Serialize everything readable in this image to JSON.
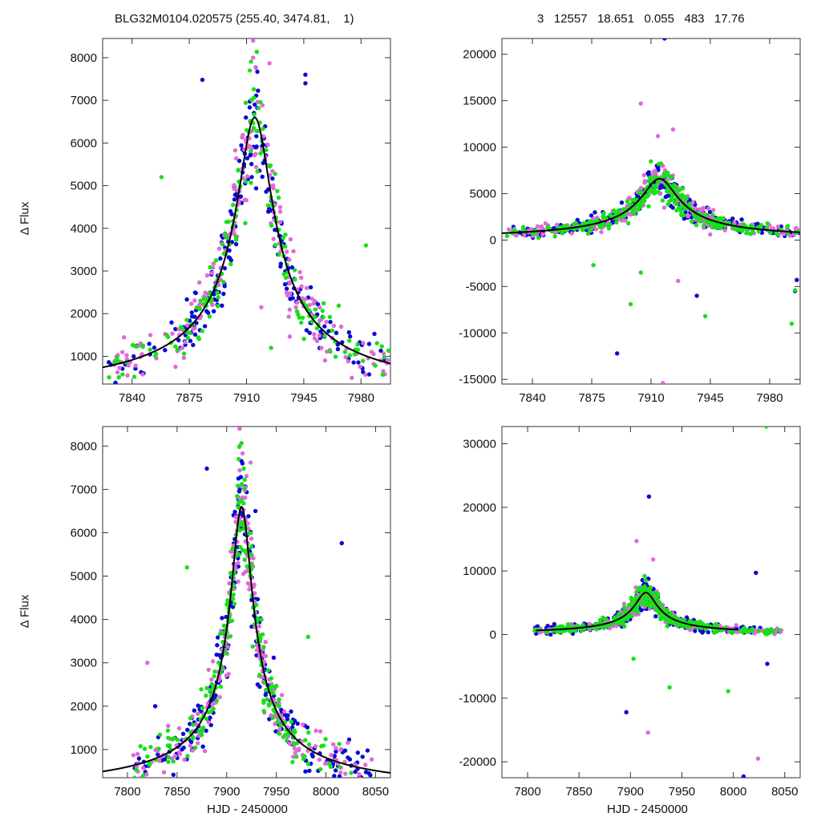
{
  "header": {
    "left": "BLG32M0104.020575 (255.40, 3474.81,    1)",
    "right": "3   12557   18.651   0.055   483   17.76"
  },
  "ylabel": "Δ Flux",
  "xlabel": "HJD - 2450000",
  "colors": {
    "series_blue": "#0a0ad2",
    "series_magenta": "#e06ad8",
    "series_green": "#18e018",
    "model": "#000000",
    "frame": "#333333"
  },
  "chart_data": [
    {
      "id": "top-left",
      "type": "scatter",
      "xlim": [
        7822,
        7998
      ],
      "ylim": [
        350,
        8450
      ],
      "xticks": [
        7840,
        7875,
        7910,
        7945,
        7980
      ],
      "yticks": [
        1000,
        2000,
        3000,
        4000,
        5000,
        6000,
        7000,
        8000
      ],
      "model": {
        "t0": 7915,
        "peak": 6600,
        "base": 0,
        "tE": 18.2
      },
      "series": [
        {
          "name": "",
          "color": "blue",
          "seed": 11,
          "n": 220,
          "scatter": 0.1,
          "outliers": [
            [
              7883,
              7480
            ],
            [
              7946,
              7600
            ],
            [
              7946,
              7400
            ],
            [
              7915,
              6900
            ]
          ]
        },
        {
          "name": "",
          "color": "magenta",
          "seed": 23,
          "n": 200,
          "scatter": 0.11,
          "outliers": [
            [
              7914,
              8400
            ],
            [
              7914,
              8000
            ],
            [
              7924,
              7870
            ],
            [
              7919,
              2150
            ]
          ]
        },
        {
          "name": "",
          "color": "green",
          "seed": 37,
          "n": 170,
          "scatter": 0.1,
          "outliers": [
            [
              7858,
              5200
            ],
            [
              7983,
              3600
            ],
            [
              7925,
              1200
            ],
            [
              7912,
              7700
            ]
          ]
        }
      ]
    },
    {
      "id": "top-right",
      "type": "scatter",
      "xlim": [
        7822,
        7998
      ],
      "ylim": [
        -15500,
        21700
      ],
      "xticks": [
        7840,
        7875,
        7910,
        7945,
        7980
      ],
      "yticks": [
        -15000,
        -10000,
        -5000,
        0,
        5000,
        10000,
        15000,
        20000
      ],
      "model": {
        "t0": 7915,
        "peak": 6600,
        "base": 0,
        "tE": 18.2
      },
      "series": [
        {
          "name": "",
          "color": "blue",
          "seed": 41,
          "n": 300,
          "scatter": 0.16,
          "outliers": [
            [
              7890,
              -12200
            ],
            [
              7918,
              21700
            ],
            [
              7937,
              -6000
            ],
            [
              7996,
              -4300
            ],
            [
              7995,
              -5500
            ]
          ]
        },
        {
          "name": "",
          "color": "magenta",
          "seed": 53,
          "n": 240,
          "scatter": 0.17,
          "outliers": [
            [
              7904,
              14700
            ],
            [
              7914,
              11200
            ],
            [
              7923,
              11900
            ],
            [
              7917,
              -15400
            ],
            [
              7926,
              -4400
            ]
          ]
        },
        {
          "name": "",
          "color": "green",
          "seed": 67,
          "n": 280,
          "scatter": 0.17,
          "outliers": [
            [
              7898,
              -6900
            ],
            [
              7904,
              -3500
            ],
            [
              7942,
              -8200
            ],
            [
              7993,
              -9000
            ],
            [
              7995,
              -5400
            ],
            [
              7876,
              -2700
            ]
          ]
        }
      ]
    },
    {
      "id": "bottom-left",
      "type": "scatter",
      "xlim": [
        7775,
        8065
      ],
      "ylim": [
        350,
        8450
      ],
      "xticks": [
        7800,
        7850,
        7900,
        7950,
        8000,
        8050
      ],
      "yticks": [
        1000,
        2000,
        3000,
        4000,
        5000,
        6000,
        7000,
        8000
      ],
      "model": {
        "t0": 7915,
        "peak": 6600,
        "base": 0,
        "tE": 18.2
      },
      "series": [
        {
          "name": "",
          "color": "blue",
          "seed": 71,
          "n": 260,
          "scatter": 0.1,
          "outliers": [
            [
              7880,
              7480
            ],
            [
              8016,
              5760
            ],
            [
              7828,
              2000
            ],
            [
              7929,
              6500
            ]
          ]
        },
        {
          "name": "",
          "color": "magenta",
          "seed": 83,
          "n": 240,
          "scatter": 0.11,
          "outliers": [
            [
              7913,
              8400
            ],
            [
              7913,
              8000
            ],
            [
              7924,
              7620
            ],
            [
              7820,
              3000
            ]
          ]
        },
        {
          "name": "",
          "color": "green",
          "seed": 97,
          "n": 220,
          "scatter": 0.1,
          "outliers": [
            [
              7860,
              5200
            ],
            [
              7982,
              3600
            ],
            [
              7912,
              7700
            ]
          ]
        }
      ]
    },
    {
      "id": "bottom-right",
      "type": "scatter",
      "xlim": [
        7775,
        8065
      ],
      "ylim": [
        -22500,
        32700
      ],
      "xticks": [
        7800,
        7850,
        7900,
        7950,
        8000,
        8050
      ],
      "yticks": [
        -20000,
        -10000,
        0,
        10000,
        20000,
        30000
      ],
      "model": {
        "t0": 7915,
        "peak": 6600,
        "base": 0,
        "tE": 18.2,
        "xmax": 8005
      },
      "series": [
        {
          "name": "",
          "color": "blue",
          "seed": 101,
          "n": 330,
          "scatter": 0.18,
          "outliers": [
            [
              7896,
              -12200
            ],
            [
              7918,
              21700
            ],
            [
              8010,
              -22300
            ],
            [
              8022,
              9700
            ],
            [
              8033,
              -4600
            ]
          ]
        },
        {
          "name": "",
          "color": "magenta",
          "seed": 113,
          "n": 260,
          "scatter": 0.19,
          "outliers": [
            [
              7906,
              14700
            ],
            [
              7917,
              -15400
            ],
            [
              8024,
              -19500
            ],
            [
              7922,
              11800
            ]
          ]
        },
        {
          "name": "",
          "color": "green",
          "seed": 127,
          "n": 300,
          "scatter": 0.18,
          "outliers": [
            [
              8032,
              32700
            ],
            [
              7903,
              -3800
            ],
            [
              7938,
              -8300
            ],
            [
              7995,
              -8900
            ]
          ]
        }
      ]
    }
  ]
}
